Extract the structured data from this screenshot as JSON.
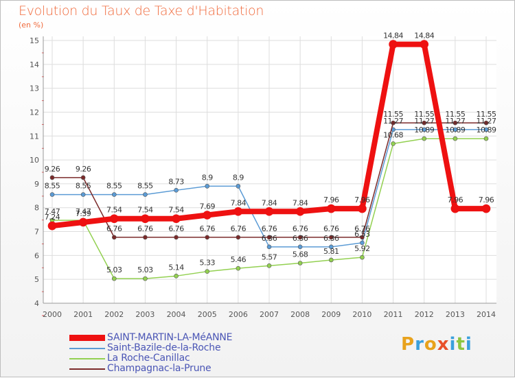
{
  "title": "Evolution du Taux de Taxe d'Habitation",
  "subtitle": "(en %)",
  "brand": {
    "letters": [
      "P",
      "r",
      "o",
      "x",
      "i",
      "t",
      "i"
    ],
    "colors": [
      "#e8a21c",
      "#3aa0dc",
      "#e8a21c",
      "#e8502a",
      "#3aa0dc",
      "#8cc63f",
      "#3aa0dc"
    ]
  },
  "chart_data": {
    "type": "line",
    "x": [
      "2000",
      "2001",
      "2002",
      "2003",
      "2004",
      "2005",
      "2006",
      "2007",
      "2008",
      "2009",
      "2010",
      "2011",
      "2012",
      "2013",
      "2014"
    ],
    "yticks": [
      "4",
      "5",
      "6",
      "7",
      "8",
      "9",
      "10",
      "11",
      "12",
      "13",
      "14",
      "15"
    ],
    "ylim": [
      4,
      15
    ],
    "grid": true,
    "legend_position": "bottom-left",
    "series": [
      {
        "name": "SAINT-MARTIN-LA-MéANNE",
        "color": "#ee1111",
        "width": 8,
        "labels": true,
        "values": [
          7.24,
          7.39,
          7.54,
          7.54,
          7.54,
          7.69,
          7.84,
          7.84,
          7.84,
          7.96,
          7.96,
          14.84,
          14.84,
          7.96,
          7.96
        ]
      },
      {
        "name": "Saint-Bazile-de-la-Roche",
        "color": "#5b9bd5",
        "width": 1.5,
        "labels": true,
        "values": [
          8.55,
          8.55,
          8.55,
          8.55,
          8.73,
          8.9,
          8.9,
          6.36,
          6.36,
          6.36,
          6.53,
          11.27,
          11.27,
          11.27,
          11.27
        ]
      },
      {
        "name": "La Roche-Canillac",
        "color": "#92d050",
        "width": 1.5,
        "labels": true,
        "values": [
          7.47,
          7.47,
          5.03,
          5.03,
          5.14,
          5.33,
          5.46,
          5.57,
          5.68,
          5.81,
          5.92,
          10.68,
          10.89,
          10.89,
          10.89
        ]
      },
      {
        "name": "Champagnac-la-Prune",
        "color": "#7b2a2a",
        "width": 1.5,
        "labels": true,
        "values": [
          9.26,
          9.26,
          6.76,
          6.76,
          6.76,
          6.76,
          6.76,
          6.76,
          6.76,
          6.76,
          6.76,
          11.55,
          11.55,
          11.55,
          11.55
        ]
      }
    ]
  }
}
